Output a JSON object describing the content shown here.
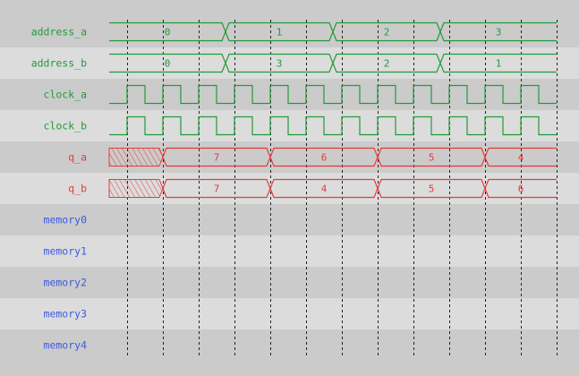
{
  "colors": {
    "row_dark": "#cbcbcb",
    "row_light": "#dcdcdc",
    "bus_signal": "#229a3a",
    "output_signal": "#e43c3c",
    "memory_label": "#3c5ae0",
    "grid": "#222222"
  },
  "time_end": 12.5,
  "grid_times": [
    0.5,
    1.5,
    2.5,
    3.5,
    4.5,
    5.5,
    6.5,
    7.5,
    8.5,
    9.5,
    10.5,
    11.5,
    12.5
  ],
  "signals": [
    {
      "name": "address_a",
      "kind": "bus",
      "color": "bus",
      "segments": [
        {
          "start": 0,
          "value": "0"
        },
        {
          "start": 3.25,
          "value": "1"
        },
        {
          "start": 6.25,
          "value": "2"
        },
        {
          "start": 9.25,
          "value": "3"
        }
      ]
    },
    {
      "name": "address_b",
      "kind": "bus",
      "color": "bus",
      "segments": [
        {
          "start": 0,
          "value": "0"
        },
        {
          "start": 3.25,
          "value": "3"
        },
        {
          "start": 6.25,
          "value": "2"
        },
        {
          "start": 9.25,
          "value": "1"
        }
      ]
    },
    {
      "name": "clock_a",
      "kind": "clock",
      "color": "bus",
      "first_rise": 0.5,
      "period": 1,
      "duty": 0.5
    },
    {
      "name": "clock_b",
      "kind": "clock",
      "color": "bus",
      "first_rise": 0.5,
      "period": 1,
      "duty": 0.5
    },
    {
      "name": "q_a",
      "kind": "bus",
      "color": "output",
      "unknown_until": 1.5,
      "segments": [
        {
          "start": 1.5,
          "value": "7"
        },
        {
          "start": 4.5,
          "value": "6"
        },
        {
          "start": 7.5,
          "value": "5"
        },
        {
          "start": 10.5,
          "value": "4"
        }
      ]
    },
    {
      "name": "q_b",
      "kind": "bus",
      "color": "output",
      "unknown_until": 1.5,
      "segments": [
        {
          "start": 1.5,
          "value": "7"
        },
        {
          "start": 4.5,
          "value": "4"
        },
        {
          "start": 7.5,
          "value": "5"
        },
        {
          "start": 10.5,
          "value": "6"
        }
      ]
    },
    {
      "name": "memory0",
      "kind": "empty",
      "color": "memory"
    },
    {
      "name": "memory1",
      "kind": "empty",
      "color": "memory"
    },
    {
      "name": "memory2",
      "kind": "empty",
      "color": "memory"
    },
    {
      "name": "memory3",
      "kind": "empty",
      "color": "memory"
    },
    {
      "name": "memory4",
      "kind": "empty",
      "color": "memory"
    }
  ]
}
